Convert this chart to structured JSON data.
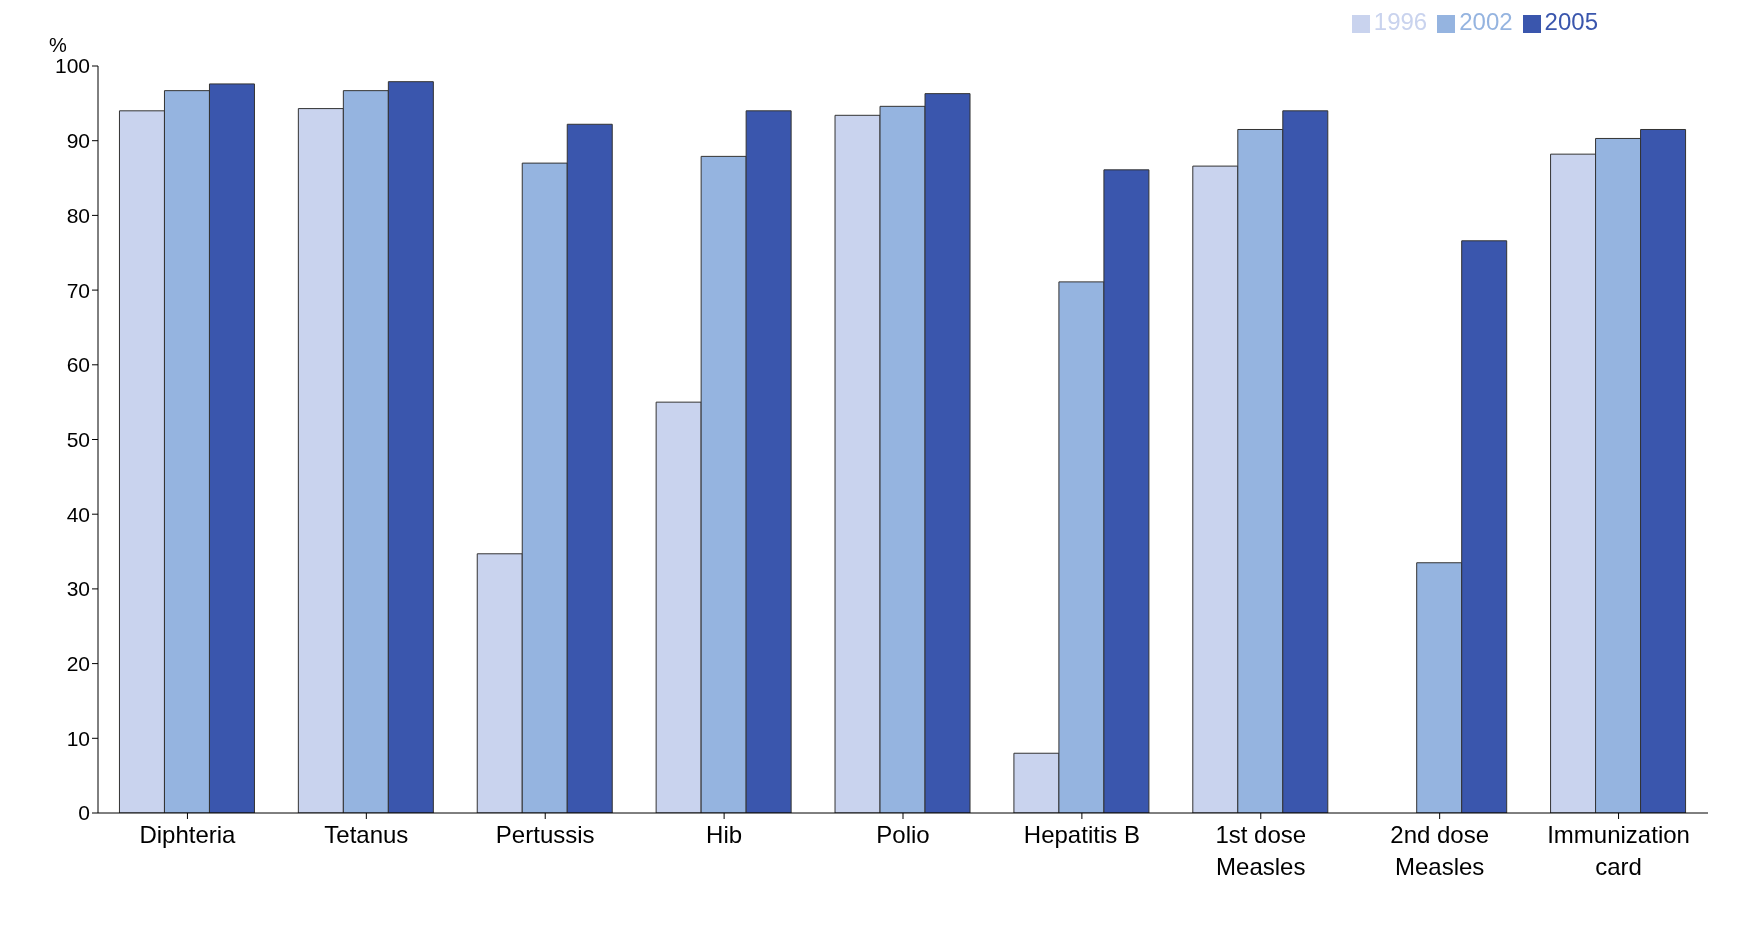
{
  "chart_data": {
    "type": "bar",
    "ylabel": "%",
    "categories": [
      "Diphteria",
      "Tetanus",
      "Pertussis",
      "Hib",
      "Polio",
      "Hepatitis B",
      "1st dose Measles",
      "2nd dose Measles",
      "Immunization card"
    ],
    "series": [
      {
        "name": "1996",
        "color": "#c9d3ee",
        "values": [
          94,
          94.3,
          34.7,
          55,
          93.4,
          8,
          86.6,
          null,
          88.2
        ]
      },
      {
        "name": "2002",
        "color": "#95b4e0",
        "values": [
          96.7,
          96.7,
          87,
          87.9,
          94.6,
          71.1,
          91.5,
          33.5,
          90.3
        ]
      },
      {
        "name": "2005",
        "color": "#3a56ad",
        "values": [
          97.6,
          97.9,
          92.2,
          94,
          96.3,
          86.1,
          94,
          76.6,
          91.5
        ]
      }
    ],
    "ylim": [
      0,
      100
    ],
    "yticks": [
      0,
      10,
      20,
      30,
      40,
      50,
      60,
      70,
      80,
      90,
      100
    ],
    "grid": false,
    "legend": "top right"
  }
}
